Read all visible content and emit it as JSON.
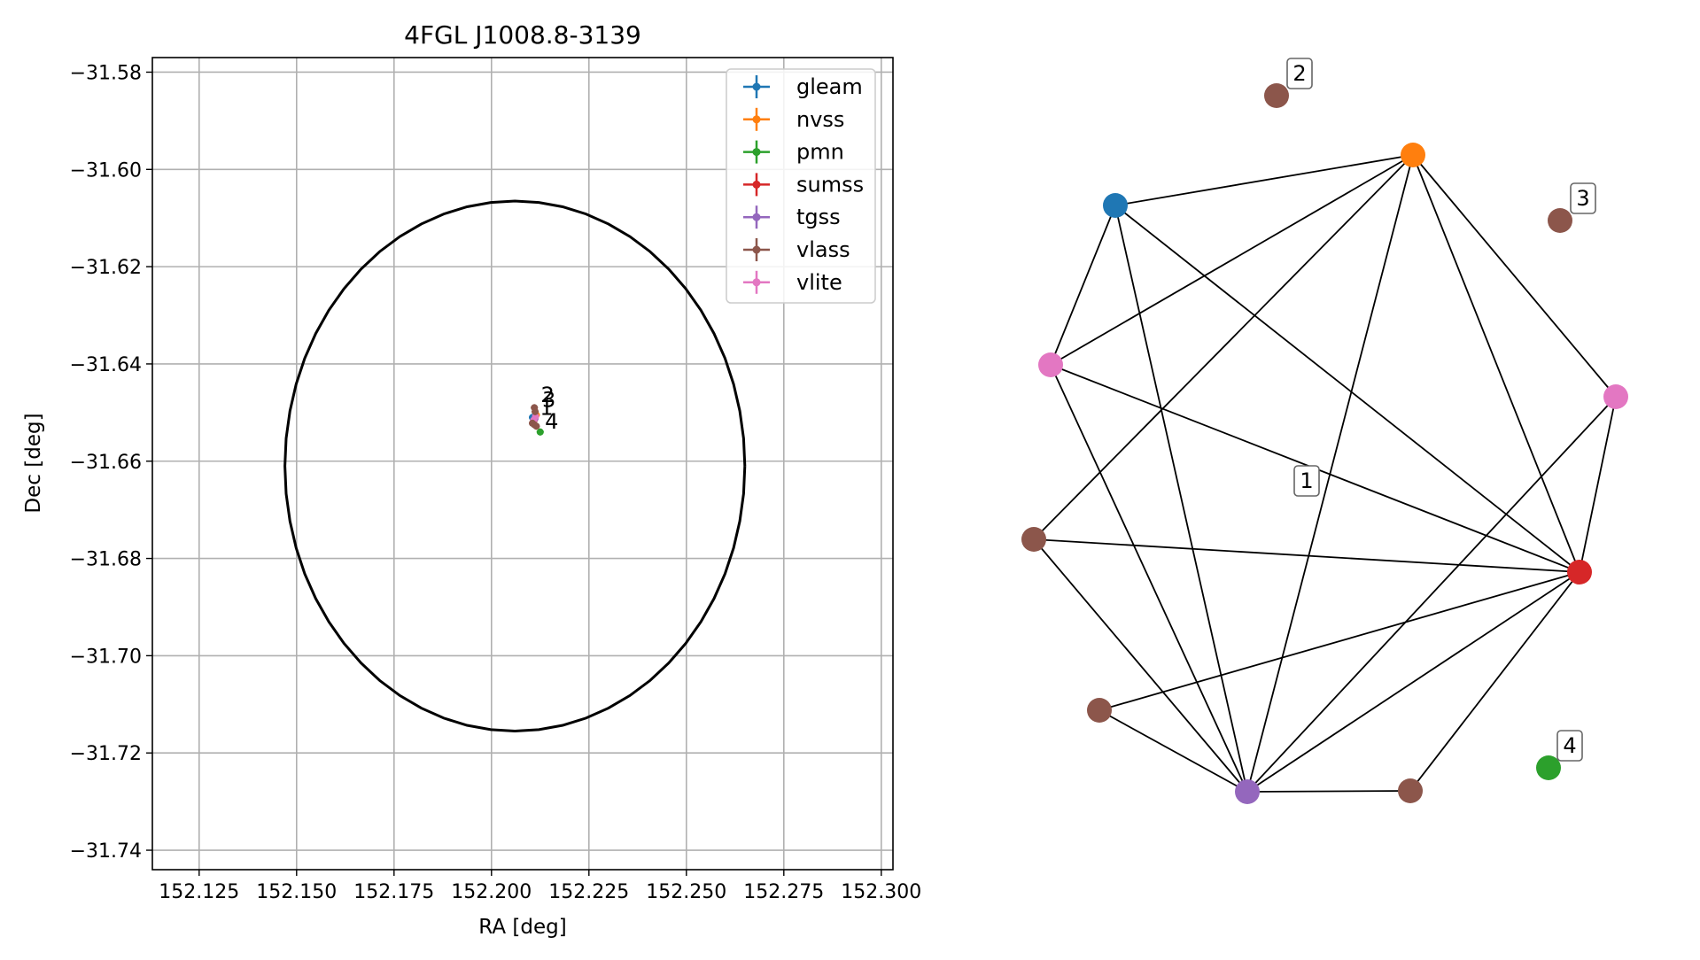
{
  "colors": {
    "gleam": "#1f77b4",
    "nvss": "#ff7f0e",
    "pmn": "#2ca02c",
    "sumss": "#d62728",
    "tgss": "#9467bd",
    "vlass": "#8c564b",
    "vlite": "#e377c2",
    "grid": "#b0b0b0",
    "ellipse": "#000000",
    "edge": "#000000"
  },
  "chart_data": [
    {
      "type": "scatter",
      "title": "4FGL J1008.8-3139",
      "xlabel": "RA [deg]",
      "ylabel": "Dec [deg]",
      "xlim": [
        152.113,
        152.303
      ],
      "ylim": [
        -31.744,
        -31.577
      ],
      "x_ticks": [
        152.125,
        152.15,
        152.175,
        152.2,
        152.225,
        152.25,
        152.275,
        152.3
      ],
      "x_tick_labels": [
        "152.125",
        "152.150",
        "152.175",
        "152.200",
        "152.225",
        "152.250",
        "152.275",
        "152.300"
      ],
      "y_ticks": [
        -31.58,
        -31.6,
        -31.62,
        -31.64,
        -31.66,
        -31.68,
        -31.7,
        -31.72,
        -31.74
      ],
      "y_tick_labels": [
        "−31.58",
        "−31.60",
        "−31.62",
        "−31.64",
        "−31.66",
        "−31.68",
        "−31.70",
        "−31.72",
        "−31.74"
      ],
      "grid": true,
      "legend_position": "top-right",
      "legend": [
        "gleam",
        "nvss",
        "pmn",
        "sumss",
        "tgss",
        "vlass",
        "vlite"
      ],
      "error_ellipse": {
        "center": [
          152.206,
          -31.661
        ],
        "semi_axis_ra": 0.059,
        "semi_axis_dec": 0.0545
      },
      "points": [
        {
          "series": "gleam",
          "ra": 152.2105,
          "dec": -31.651
        },
        {
          "series": "nvss",
          "ra": 152.2115,
          "dec": -31.6505
        },
        {
          "series": "sumss",
          "ra": 152.211,
          "dec": -31.6515
        },
        {
          "series": "tgss",
          "ra": 152.2112,
          "dec": -31.6512
        },
        {
          "series": "vlite",
          "ra": 152.2113,
          "dec": -31.6508
        },
        {
          "series": "vlite",
          "ra": 152.2108,
          "dec": -31.6516
        },
        {
          "series": "vlass",
          "ra": 152.211,
          "dec": -31.649
        },
        {
          "series": "vlass",
          "ra": 152.2112,
          "dec": -31.6498
        },
        {
          "series": "vlass",
          "ra": 152.2105,
          "dec": -31.6522
        },
        {
          "series": "vlass",
          "ra": 152.211,
          "dec": -31.6525
        },
        {
          "series": "vlass",
          "ra": 152.2115,
          "dec": -31.6528
        },
        {
          "series": "pmn",
          "ra": 152.2125,
          "dec": -31.654
        }
      ],
      "annotations": [
        {
          "text": "2",
          "ra": 152.2127,
          "dec": -31.6478
        },
        {
          "text": "3",
          "ra": 152.213,
          "dec": -31.6488
        },
        {
          "text": "1",
          "ra": 152.2124,
          "dec": -31.6505
        },
        {
          "text": "4",
          "ra": 152.2137,
          "dec": -31.6533
        }
      ]
    },
    {
      "type": "network",
      "nodes": [
        {
          "id": "a",
          "series": "gleam"
        },
        {
          "id": "b",
          "series": "nvss"
        },
        {
          "id": "c",
          "series": "vlite"
        },
        {
          "id": "d",
          "series": "vlite"
        },
        {
          "id": "e",
          "series": "vlass"
        },
        {
          "id": "f",
          "series": "sumss"
        },
        {
          "id": "g",
          "series": "vlass"
        },
        {
          "id": "h",
          "series": "tgss"
        },
        {
          "id": "i",
          "series": "vlass"
        },
        {
          "id": "j",
          "series": "vlass",
          "label": "2"
        },
        {
          "id": "k",
          "series": "vlass",
          "label": "3"
        },
        {
          "id": "l",
          "series": "pmn",
          "label": "4"
        }
      ],
      "component_labels": [
        "1"
      ],
      "edges": [
        [
          "a",
          "b"
        ],
        [
          "a",
          "c"
        ],
        [
          "a",
          "h"
        ],
        [
          "a",
          "f"
        ],
        [
          "b",
          "c"
        ],
        [
          "b",
          "e"
        ],
        [
          "b",
          "h"
        ],
        [
          "b",
          "f"
        ],
        [
          "b",
          "d"
        ],
        [
          "c",
          "h"
        ],
        [
          "c",
          "f"
        ],
        [
          "e",
          "f"
        ],
        [
          "e",
          "h"
        ],
        [
          "d",
          "f"
        ],
        [
          "d",
          "h"
        ],
        [
          "g",
          "h"
        ],
        [
          "g",
          "f"
        ],
        [
          "h",
          "f"
        ],
        [
          "h",
          "i"
        ],
        [
          "i",
          "f"
        ]
      ]
    }
  ]
}
